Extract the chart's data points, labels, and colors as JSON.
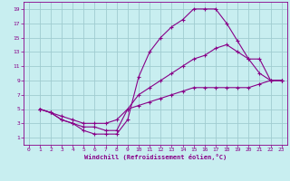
{
  "xlabel": "Windchill (Refroidissement éolien,°C)",
  "bg_color": "#c8eef0",
  "grid_color": "#a0ccd0",
  "line_color": "#880088",
  "xlim": [
    -0.5,
    23.5
  ],
  "ylim": [
    0,
    20
  ],
  "xticks": [
    0,
    1,
    2,
    3,
    4,
    5,
    6,
    7,
    8,
    9,
    10,
    11,
    12,
    13,
    14,
    15,
    16,
    17,
    18,
    19,
    20,
    21,
    22,
    23
  ],
  "yticks": [
    1,
    3,
    5,
    7,
    9,
    11,
    13,
    15,
    17,
    19
  ],
  "line1_x": [
    1,
    2,
    3,
    4,
    5,
    6,
    7,
    8,
    9,
    10,
    11,
    12,
    13,
    14,
    15,
    16,
    17,
    18,
    19,
    20,
    21,
    22,
    23
  ],
  "line1_y": [
    5,
    4.5,
    3.5,
    3,
    2,
    1.5,
    1.5,
    1.5,
    3.5,
    9.5,
    13,
    15,
    16.5,
    17.5,
    19,
    19,
    19,
    17,
    14.5,
    12,
    10,
    9,
    9
  ],
  "line2_x": [
    1,
    2,
    3,
    4,
    5,
    6,
    7,
    8,
    9,
    10,
    11,
    12,
    13,
    14,
    15,
    16,
    17,
    18,
    19,
    20,
    21,
    22,
    23
  ],
  "line2_y": [
    5,
    4.5,
    3.5,
    3,
    2.5,
    2.5,
    2,
    2,
    5,
    7,
    8,
    9,
    10,
    11,
    12,
    12.5,
    13.5,
    14,
    13,
    12,
    12,
    9,
    9
  ],
  "line3_x": [
    1,
    2,
    3,
    4,
    5,
    6,
    7,
    8,
    9,
    10,
    11,
    12,
    13,
    14,
    15,
    16,
    17,
    18,
    19,
    20,
    21,
    22,
    23
  ],
  "line3_y": [
    5,
    4.5,
    4,
    3.5,
    3,
    3,
    3,
    3.5,
    5,
    5.5,
    6,
    6.5,
    7,
    7.5,
    8,
    8,
    8,
    8,
    8,
    8,
    8.5,
    9,
    9
  ]
}
